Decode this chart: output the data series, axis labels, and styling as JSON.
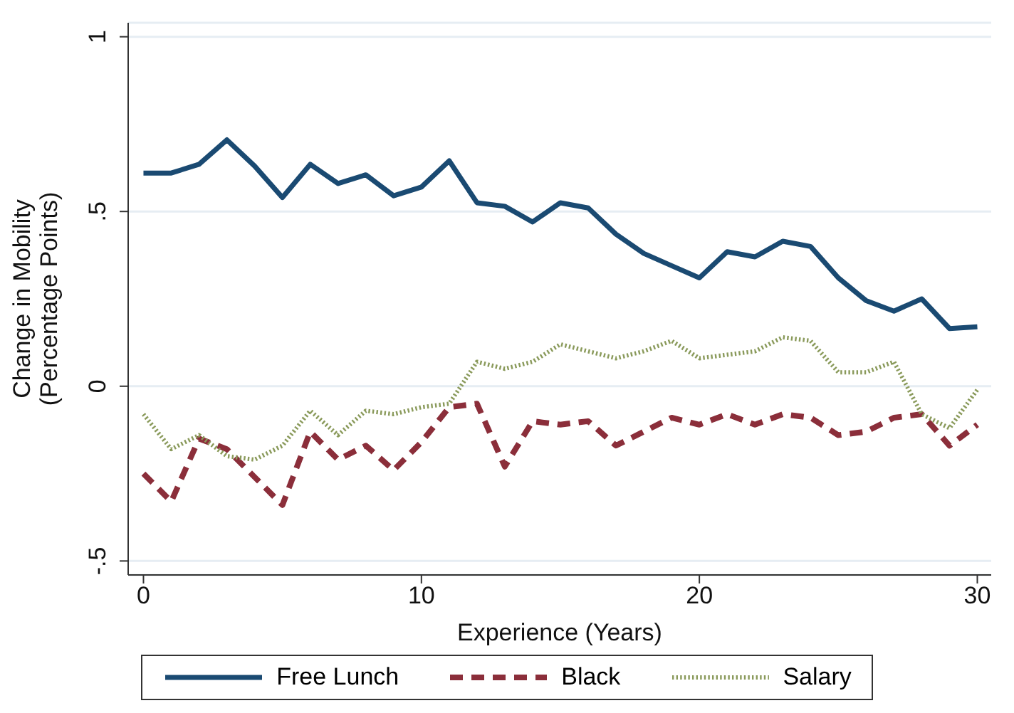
{
  "chart_data": {
    "type": "line",
    "xlabel": "Experience (Years)",
    "ylabel": "Change in Mobility\n(Percentage Points)",
    "x": [
      0,
      1,
      2,
      3,
      4,
      5,
      6,
      7,
      8,
      9,
      10,
      11,
      12,
      13,
      14,
      15,
      16,
      17,
      18,
      19,
      20,
      21,
      22,
      23,
      24,
      25,
      26,
      27,
      28,
      29,
      30
    ],
    "series": [
      {
        "name": "Free Lunch",
        "color": "#1a4a72",
        "line_style": "solid",
        "values": [
          0.61,
          0.61,
          0.635,
          0.705,
          0.63,
          0.54,
          0.635,
          0.58,
          0.605,
          0.545,
          0.57,
          0.645,
          0.525,
          0.515,
          0.47,
          0.525,
          0.51,
          0.435,
          0.38,
          0.345,
          0.31,
          0.385,
          0.37,
          0.415,
          0.4,
          0.31,
          0.245,
          0.215,
          0.25,
          0.165,
          0.17
        ]
      },
      {
        "name": "Black",
        "color": "#8b2e3a",
        "line_style": "dashed",
        "values": [
          -0.25,
          -0.33,
          -0.15,
          -0.18,
          -0.26,
          -0.34,
          -0.13,
          -0.21,
          -0.17,
          -0.24,
          -0.16,
          -0.06,
          -0.05,
          -0.23,
          -0.1,
          -0.11,
          -0.1,
          -0.17,
          -0.13,
          -0.09,
          -0.11,
          -0.08,
          -0.11,
          -0.08,
          -0.09,
          -0.14,
          -0.13,
          -0.09,
          -0.08,
          -0.17,
          -0.11
        ]
      },
      {
        "name": "Salary",
        "color": "#8a9a5b",
        "line_style": "dotted",
        "values": [
          -0.08,
          -0.18,
          -0.14,
          -0.2,
          -0.21,
          -0.17,
          -0.07,
          -0.14,
          -0.07,
          -0.08,
          -0.06,
          -0.05,
          0.07,
          0.05,
          0.07,
          0.12,
          0.1,
          0.08,
          0.1,
          0.13,
          0.08,
          0.09,
          0.1,
          0.14,
          0.13,
          0.04,
          0.04,
          0.07,
          -0.08,
          -0.12,
          -0.01
        ]
      }
    ],
    "xlim": [
      -0.55,
      30.5
    ],
    "xticks": [
      0,
      10,
      20,
      30
    ],
    "ylim": [
      -0.54,
      1.04
    ],
    "yticks": [
      {
        "value": -0.5,
        "label": "-.5"
      },
      0,
      {
        "value": 0.5,
        "label": ".5"
      },
      1
    ],
    "grid": "y",
    "legend": "bottom",
    "marker": "none"
  }
}
